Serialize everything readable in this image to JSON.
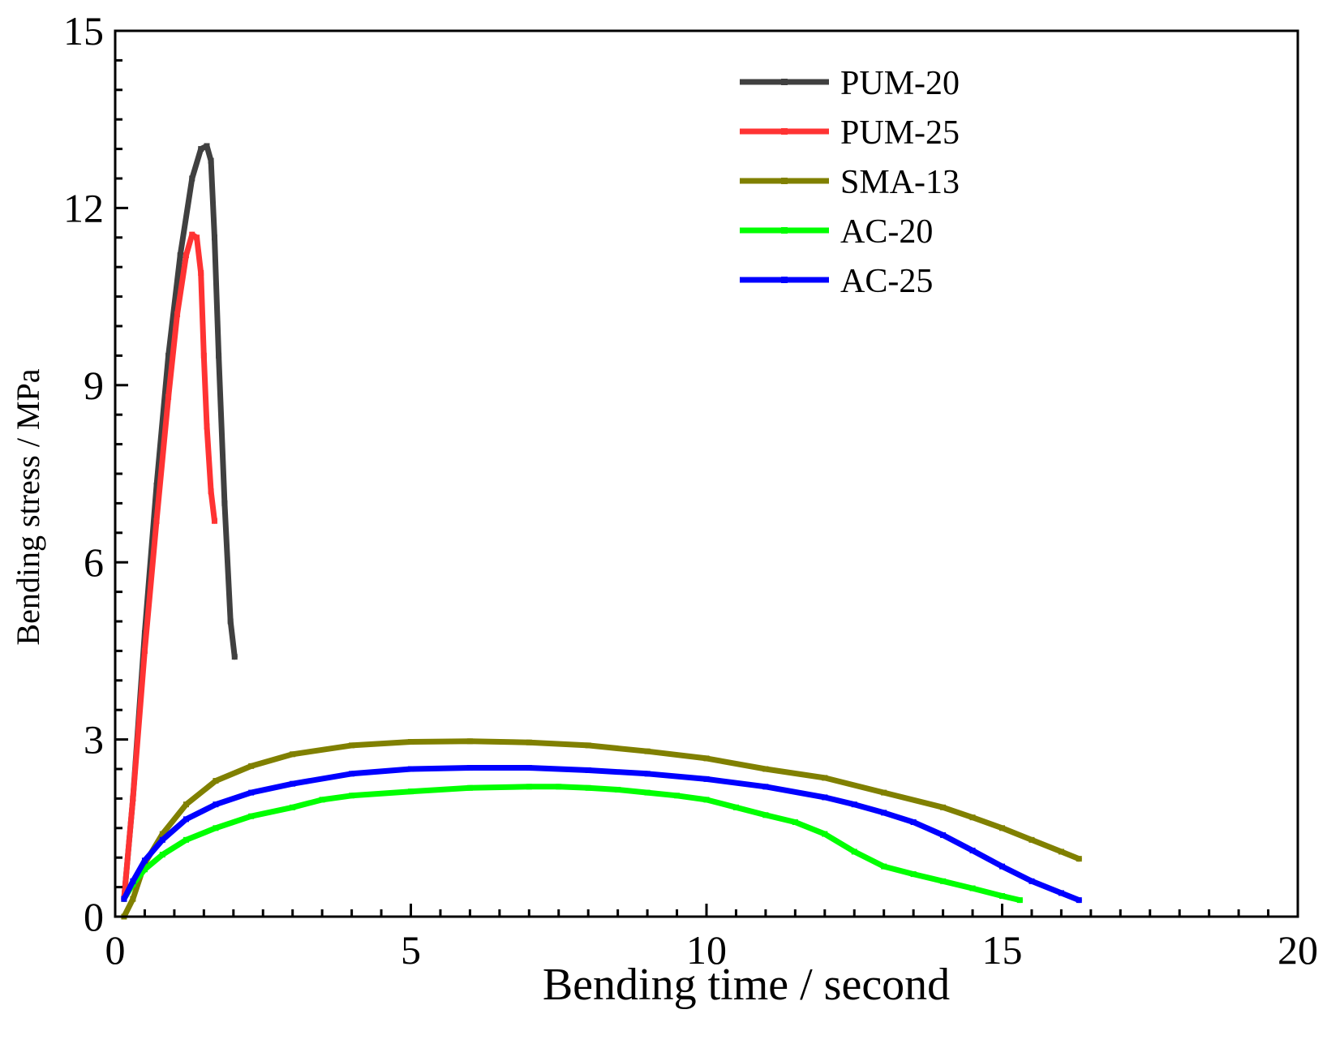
{
  "chart_data": {
    "type": "line",
    "title": "",
    "xlabel": "Bending time / second",
    "ylabel": "Bending stress / MPa",
    "xlim": [
      0,
      20
    ],
    "ylim": [
      0,
      15
    ],
    "xticks": [
      0,
      5,
      10,
      15,
      20
    ],
    "yticks": [
      0,
      3,
      6,
      9,
      12,
      15
    ],
    "grid": false,
    "legend_position": "top-right",
    "series": [
      {
        "name": "PUM-20",
        "color": "#404040",
        "marker": "square",
        "x": [
          0.15,
          0.3,
          0.5,
          0.7,
          0.9,
          1.1,
          1.3,
          1.45,
          1.55,
          1.62,
          1.68,
          1.75,
          1.85,
          1.95,
          2.02
        ],
        "y": [
          0.3,
          2.0,
          4.8,
          7.3,
          9.5,
          11.2,
          12.5,
          13.0,
          13.05,
          12.8,
          11.5,
          9.5,
          7.0,
          5.0,
          4.4
        ]
      },
      {
        "name": "PUM-25",
        "color": "#ff3333",
        "marker": "circle",
        "x": [
          0.15,
          0.3,
          0.5,
          0.7,
          0.9,
          1.05,
          1.2,
          1.3,
          1.38,
          1.45,
          1.5,
          1.55,
          1.62,
          1.68
        ],
        "y": [
          0.3,
          2.0,
          4.5,
          6.7,
          8.8,
          10.2,
          11.2,
          11.55,
          11.5,
          10.9,
          9.5,
          8.3,
          7.2,
          6.7
        ]
      },
      {
        "name": "SMA-13",
        "color": "#808000",
        "marker": "triangle",
        "x": [
          0.15,
          0.3,
          0.5,
          0.8,
          1.2,
          1.7,
          2.3,
          3.0,
          4.0,
          5.0,
          6.0,
          7.0,
          8.0,
          9.0,
          10.0,
          11.0,
          12.0,
          13.0,
          14.0,
          14.5,
          15.0,
          15.5,
          16.0,
          16.3
        ],
        "y": [
          0.0,
          0.3,
          0.9,
          1.4,
          1.9,
          2.3,
          2.55,
          2.75,
          2.9,
          2.96,
          2.97,
          2.95,
          2.9,
          2.8,
          2.68,
          2.5,
          2.35,
          2.1,
          1.85,
          1.68,
          1.5,
          1.3,
          1.1,
          0.98
        ]
      },
      {
        "name": "AC-20",
        "color": "#00ff00",
        "marker": "triangle-down",
        "x": [
          0.15,
          0.3,
          0.5,
          0.8,
          1.2,
          1.7,
          2.3,
          3.0,
          3.5,
          4.0,
          5.0,
          6.0,
          7.0,
          7.5,
          8.0,
          8.5,
          9.0,
          9.5,
          10.0,
          10.5,
          11.0,
          11.5,
          12.0,
          12.5,
          13.0,
          13.5,
          14.0,
          14.5,
          15.0,
          15.3
        ],
        "y": [
          0.3,
          0.55,
          0.8,
          1.05,
          1.3,
          1.5,
          1.7,
          1.85,
          1.98,
          2.05,
          2.12,
          2.18,
          2.2,
          2.2,
          2.18,
          2.15,
          2.1,
          2.05,
          1.98,
          1.85,
          1.72,
          1.6,
          1.4,
          1.1,
          0.85,
          0.72,
          0.6,
          0.48,
          0.35,
          0.28
        ]
      },
      {
        "name": "AC-25",
        "color": "#0000ff",
        "marker": "diamond",
        "x": [
          0.15,
          0.3,
          0.5,
          0.8,
          1.2,
          1.7,
          2.3,
          3.0,
          4.0,
          5.0,
          6.0,
          7.0,
          8.0,
          9.0,
          10.0,
          11.0,
          12.0,
          12.5,
          13.0,
          13.5,
          14.0,
          14.5,
          15.0,
          15.5,
          16.0,
          16.3
        ],
        "y": [
          0.3,
          0.6,
          0.95,
          1.3,
          1.65,
          1.9,
          2.1,
          2.25,
          2.42,
          2.5,
          2.52,
          2.52,
          2.48,
          2.42,
          2.33,
          2.2,
          2.02,
          1.9,
          1.76,
          1.6,
          1.38,
          1.12,
          0.85,
          0.6,
          0.4,
          0.28
        ]
      }
    ]
  }
}
